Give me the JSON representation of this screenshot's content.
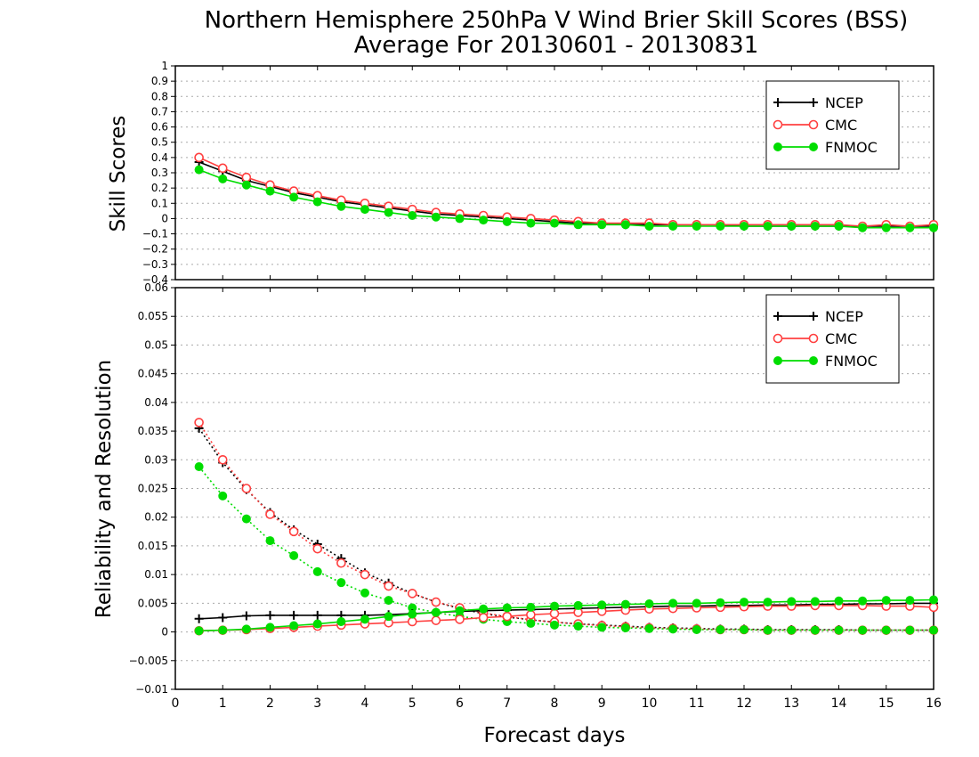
{
  "title_line1": "Northern Hemisphere 250hPa V Wind Brier Skill Scores (BSS)",
  "title_line2": "Average For 20130601 - 20130831",
  "xlabel": "Forecast days",
  "colors": {
    "NCEP": "#000000",
    "CMC": "#ff4040",
    "FNMOC": "#00dd00",
    "grid": "#aaaaaa"
  },
  "chart_data": [
    {
      "type": "line",
      "ylabel": "Skill Scores",
      "xlim": [
        0,
        16
      ],
      "ylim": [
        -0.4,
        1
      ],
      "x_ticks": [
        "0",
        "1",
        "2",
        "3",
        "4",
        "5",
        "6",
        "7",
        "8",
        "9",
        "10",
        "11",
        "12",
        "13",
        "14",
        "15",
        "16"
      ],
      "y_ticks": [
        "1",
        "0.9",
        "0.8",
        "0.7",
        "0.6",
        "0.5",
        "0.4",
        "0.3",
        "0.2",
        "0.1",
        "0",
        "−0.1",
        "−0.2",
        "−0.3",
        "−0.4"
      ],
      "grid": true,
      "legend": {
        "entries": [
          "NCEP",
          "CMC",
          "FNMOC"
        ],
        "placement": "top-right"
      },
      "x": [
        0.5,
        1,
        1.5,
        2,
        2.5,
        3,
        3.5,
        4,
        4.5,
        5,
        5.5,
        6,
        6.5,
        7,
        7.5,
        8,
        8.5,
        9,
        9.5,
        10,
        10.5,
        11,
        11.5,
        12,
        12.5,
        13,
        13.5,
        14,
        14.5,
        15,
        15.5,
        16
      ],
      "series": [
        {
          "name": "NCEP",
          "marker": "plus",
          "style": "solid",
          "values": [
            0.37,
            0.31,
            0.25,
            0.21,
            0.17,
            0.14,
            0.11,
            0.09,
            0.07,
            0.05,
            0.03,
            0.02,
            0.01,
            0.0,
            -0.01,
            -0.02,
            -0.03,
            -0.03,
            -0.04,
            -0.04,
            -0.04,
            -0.04,
            -0.04,
            -0.05,
            -0.05,
            -0.05,
            -0.05,
            -0.05,
            -0.05,
            -0.05,
            -0.05,
            -0.05
          ]
        },
        {
          "name": "CMC",
          "marker": "open-circle",
          "style": "solid",
          "values": [
            0.4,
            0.33,
            0.27,
            0.22,
            0.18,
            0.15,
            0.12,
            0.1,
            0.08,
            0.06,
            0.04,
            0.03,
            0.02,
            0.01,
            0.0,
            -0.01,
            -0.02,
            -0.03,
            -0.03,
            -0.03,
            -0.04,
            -0.04,
            -0.04,
            -0.04,
            -0.04,
            -0.04,
            -0.04,
            -0.04,
            -0.05,
            -0.04,
            -0.05,
            -0.04
          ]
        },
        {
          "name": "FNMOC",
          "marker": "filled-circle",
          "style": "solid",
          "values": [
            0.32,
            0.26,
            0.22,
            0.18,
            0.14,
            0.11,
            0.08,
            0.06,
            0.04,
            0.02,
            0.01,
            0.0,
            -0.01,
            -0.02,
            -0.03,
            -0.03,
            -0.04,
            -0.04,
            -0.04,
            -0.05,
            -0.05,
            -0.05,
            -0.05,
            -0.05,
            -0.05,
            -0.05,
            -0.05,
            -0.05,
            -0.06,
            -0.06,
            -0.06,
            -0.06
          ]
        }
      ]
    },
    {
      "type": "line",
      "ylabel": "Reliability and Resolution",
      "xlim": [
        0,
        16
      ],
      "ylim": [
        -0.01,
        0.06
      ],
      "x_ticks": [
        "0",
        "1",
        "2",
        "3",
        "4",
        "5",
        "6",
        "7",
        "8",
        "9",
        "10",
        "11",
        "12",
        "13",
        "14",
        "15",
        "16"
      ],
      "y_ticks": [
        "0.06",
        "0.055",
        "0.05",
        "0.045",
        "0.04",
        "0.035",
        "0.03",
        "0.025",
        "0.02",
        "0.015",
        "0.01",
        "0.005",
        "0",
        "−0.005",
        "−0.01"
      ],
      "grid": true,
      "legend": {
        "entries": [
          "NCEP",
          "CMC",
          "FNMOC"
        ],
        "placement": "top-right"
      },
      "x": [
        0.5,
        1,
        1.5,
        2,
        2.5,
        3,
        3.5,
        4,
        4.5,
        5,
        5.5,
        6,
        6.5,
        7,
        7.5,
        8,
        8.5,
        9,
        9.5,
        10,
        10.5,
        11,
        11.5,
        12,
        12.5,
        13,
        13.5,
        14,
        14.5,
        15,
        15.5,
        16
      ],
      "series": [
        {
          "name": "NCEP",
          "group": "reliability",
          "marker": "plus",
          "style": "dotted",
          "values": [
            0.0355,
            0.0295,
            0.0248,
            0.0208,
            0.0178,
            0.0153,
            0.0128,
            0.0103,
            0.0085,
            0.0067,
            0.0052,
            0.0041,
            0.0032,
            0.0026,
            0.0021,
            0.0017,
            0.0014,
            0.0012,
            0.001,
            0.0008,
            0.0007,
            0.0006,
            0.0005,
            0.0005,
            0.0004,
            0.0004,
            0.0004,
            0.0004,
            0.0003,
            0.0003,
            0.0003,
            0.0003
          ]
        },
        {
          "name": "CMC",
          "group": "reliability",
          "marker": "open-circle",
          "style": "dotted",
          "values": [
            0.0365,
            0.03,
            0.025,
            0.0205,
            0.0175,
            0.0145,
            0.012,
            0.01,
            0.008,
            0.0067,
            0.0052,
            0.0042,
            0.0033,
            0.0027,
            0.0021,
            0.0017,
            0.0014,
            0.0011,
            0.0009,
            0.0007,
            0.0006,
            0.0005,
            0.0004,
            0.0004,
            0.0003,
            0.0003,
            0.0003,
            0.0003,
            0.0003,
            0.0003,
            0.0003,
            0.0003
          ]
        },
        {
          "name": "FNMOC",
          "group": "reliability",
          "marker": "filled-circle",
          "style": "dotted",
          "values": [
            0.0288,
            0.0237,
            0.0197,
            0.0159,
            0.0133,
            0.0105,
            0.0086,
            0.0068,
            0.0055,
            0.0042,
            0.0034,
            0.0027,
            0.0022,
            0.0018,
            0.0015,
            0.0012,
            0.001,
            0.0008,
            0.0007,
            0.0006,
            0.0005,
            0.0004,
            0.0004,
            0.0004,
            0.0003,
            0.0003,
            0.0003,
            0.0003,
            0.0003,
            0.0003,
            0.0003,
            0.0003
          ]
        },
        {
          "name": "NCEP",
          "group": "resolution",
          "marker": "plus",
          "style": "solid",
          "values": [
            0.0023,
            0.0025,
            0.0028,
            0.0029,
            0.0029,
            0.0029,
            0.0029,
            0.0029,
            0.003,
            0.0032,
            0.0034,
            0.0036,
            0.0037,
            0.0038,
            0.0039,
            0.004,
            0.0041,
            0.0042,
            0.0043,
            0.0044,
            0.0045,
            0.0045,
            0.0046,
            0.0046,
            0.0047,
            0.0047,
            0.0048,
            0.0048,
            0.0049,
            0.0049,
            0.005,
            0.005
          ]
        },
        {
          "name": "CMC",
          "group": "resolution",
          "marker": "open-circle",
          "style": "solid",
          "values": [
            0.0002,
            0.0003,
            0.0004,
            0.0006,
            0.0008,
            0.001,
            0.0012,
            0.0014,
            0.0016,
            0.0018,
            0.002,
            0.0022,
            0.0025,
            0.0027,
            0.003,
            0.0032,
            0.0034,
            0.0036,
            0.0038,
            0.004,
            0.0041,
            0.0042,
            0.0043,
            0.0044,
            0.0045,
            0.0045,
            0.0046,
            0.0046,
            0.0046,
            0.0045,
            0.0045,
            0.0043
          ]
        },
        {
          "name": "FNMOC",
          "group": "resolution",
          "marker": "filled-circle",
          "style": "solid",
          "values": [
            0.0002,
            0.0003,
            0.0005,
            0.0008,
            0.0011,
            0.0014,
            0.0018,
            0.0022,
            0.0027,
            0.0031,
            0.0034,
            0.0037,
            0.004,
            0.0042,
            0.0043,
            0.0045,
            0.0046,
            0.0047,
            0.0048,
            0.0049,
            0.005,
            0.005,
            0.0051,
            0.0052,
            0.0052,
            0.0053,
            0.0053,
            0.0054,
            0.0054,
            0.0055,
            0.0055,
            0.0056
          ]
        }
      ]
    }
  ]
}
